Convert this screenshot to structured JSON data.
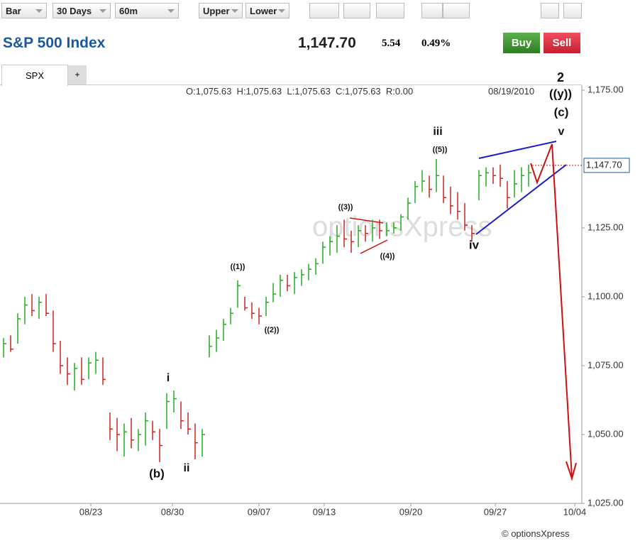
{
  "toolbar": {
    "style": "Bar",
    "period": "30 Days",
    "interval": "60m",
    "upper": "Upper",
    "lower": "Lower"
  },
  "header": {
    "title": "S&P 500 Index",
    "price": "1,147.70",
    "change": "5.54",
    "change_pct": "0.49%",
    "buy": "Buy",
    "sell": "Sell"
  },
  "tabs": [
    "SPX",
    "+"
  ],
  "info": {
    "ohlc": "O:1,075.63  H:1,075.63  L:1,075.63  C:1,075.63  R:0.00",
    "date": "08/19/2010"
  },
  "chart_data": {
    "type": "ohlc",
    "low": [
      1078,
      1080,
      1083,
      1090,
      1093,
      1092,
      1093,
      1080,
      1072,
      1068,
      1066,
      1068,
      1070,
      1072,
      1068,
      1048,
      1044,
      1042,
      1045,
      1044,
      1046,
      1048,
      1040,
      1052,
      1058,
      1052,
      1050,
      1041,
      1042,
      1078,
      1080,
      1084,
      1090,
      1096,
      1095,
      1092,
      1090,
      1093,
      1098,
      1100,
      1102,
      1101,
      1104,
      1106,
      1108,
      1112,
      1115,
      1116,
      1118,
      1116,
      1118,
      1120,
      1120,
      1121,
      1122,
      1123,
      1124,
      1128,
      1134,
      1138,
      1136,
      1138,
      1134,
      1130,
      1128,
      1124,
      1120,
      1135,
      1140,
      1141,
      1140,
      1132,
      1136,
      1138,
      1140
    ],
    "high": [
      1085,
      1086,
      1094,
      1100,
      1101,
      1100,
      1101,
      1095,
      1084,
      1078,
      1076,
      1078,
      1078,
      1080,
      1078,
      1058,
      1056,
      1054,
      1056,
      1052,
      1058,
      1055,
      1052,
      1065,
      1066,
      1062,
      1058,
      1054,
      1052,
      1086,
      1088,
      1092,
      1096,
      1106,
      1100,
      1098,
      1096,
      1100,
      1105,
      1108,
      1108,
      1109,
      1110,
      1112,
      1114,
      1120,
      1122,
      1126,
      1128,
      1124,
      1126,
      1126,
      1128,
      1128,
      1127,
      1127,
      1130,
      1136,
      1142,
      1146,
      1144,
      1150,
      1144,
      1140,
      1138,
      1134,
      1126,
      1146,
      1147,
      1147,
      1148,
      1142,
      1146,
      1147,
      1148
    ],
    "close": [
      1083,
      1081,
      1092,
      1097,
      1095,
      1098,
      1094,
      1083,
      1075,
      1072,
      1074,
      1070,
      1076,
      1077,
      1070,
      1052,
      1050,
      1051,
      1048,
      1050,
      1055,
      1051,
      1046,
      1062,
      1063,
      1055,
      1052,
      1047,
      1050,
      1082,
      1085,
      1090,
      1094,
      1104,
      1096,
      1094,
      1093,
      1098,
      1101,
      1106,
      1104,
      1107,
      1108,
      1110,
      1112,
      1118,
      1120,
      1122,
      1121,
      1120,
      1124,
      1123,
      1125,
      1124,
      1124,
      1125,
      1129,
      1134,
      1140,
      1142,
      1139,
      1144,
      1136,
      1133,
      1131,
      1126,
      1123,
      1144,
      1145,
      1144,
      1143,
      1136,
      1141,
      1144,
      1145
    ],
    "up_color": "#22aa22",
    "down_color": "#cc2222",
    "ylim": [
      1025,
      1175
    ],
    "yticks": [
      {
        "value": 1175,
        "label": "1,175.00"
      },
      {
        "value": 1125,
        "label": "1,125.00"
      },
      {
        "value": 1100,
        "label": "1,100.00"
      },
      {
        "value": 1075,
        "label": "1,075.00"
      },
      {
        "value": 1050,
        "label": "1,050.00"
      },
      {
        "value": 1025,
        "label": "1,025.00"
      }
    ],
    "xlim": [
      0,
      82
    ],
    "xticks": [
      {
        "value": 12.8,
        "label": "08/23"
      },
      {
        "value": 24.3,
        "label": "08/30"
      },
      {
        "value": 36.5,
        "label": "09/07"
      },
      {
        "value": 45.7,
        "label": "09/13"
      },
      {
        "value": 57.9,
        "label": "09/20"
      },
      {
        "value": 69.8,
        "label": "09/27"
      },
      {
        "value": 81,
        "label": "10/04"
      }
    ],
    "last": {
      "value": 1147.7,
      "label": "1,147.70"
    },
    "annotations": [
      "2",
      "((y))",
      "(c)",
      "v",
      "iii",
      "((5))",
      "((3))",
      "((4))",
      "iv",
      "((1))",
      "((2))",
      "i",
      "(b)",
      "ii"
    ]
  },
  "footer": "© optionsXpress"
}
